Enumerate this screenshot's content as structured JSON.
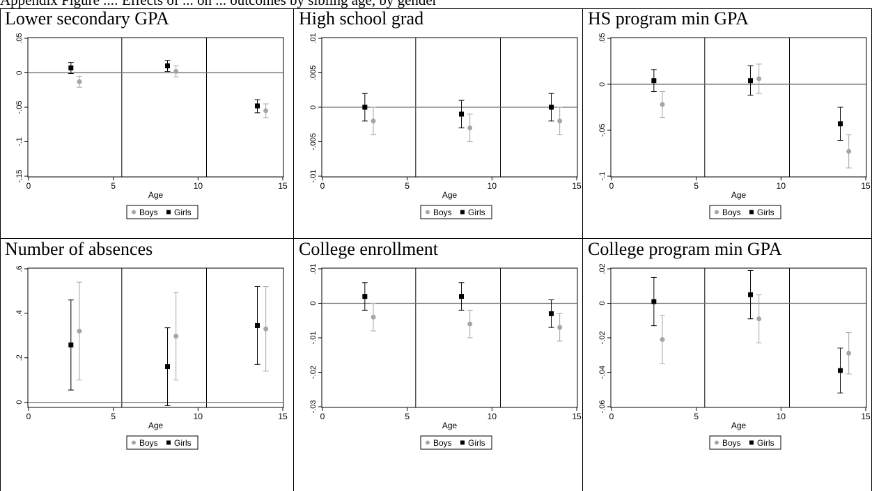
{
  "caption": "Appendix Figure ...: Effects of ... on ... outcomes by sibling age, by gender",
  "xlabel": "Age",
  "legend": {
    "boys": "Boys",
    "girls": "Girls"
  },
  "colors": {
    "boys": "#a6a6a6",
    "girls": "#000000",
    "axis": "#000000",
    "refline": "#6e6e6e"
  },
  "panels": [
    {
      "title": "Lower secondary GPA",
      "chart_data": {
        "type": "scatter",
        "title": "Lower secondary GPA",
        "xlabel": "Age",
        "ylabel": "",
        "xlim": [
          0,
          15
        ],
        "ylim": [
          -0.15,
          0.05
        ],
        "xticks": [
          0,
          5,
          10,
          15
        ],
        "yticks": [
          0.05,
          0,
          -0.05,
          -0.1,
          -0.15
        ],
        "ytick_labels": [
          ".05",
          "0",
          "-.05",
          "-.1",
          "-.15"
        ],
        "vlines": [
          5.5,
          10.5
        ],
        "hline": 0,
        "series": [
          {
            "name": "Girls",
            "x": [
              2.5,
              8.2,
              13.5
            ],
            "y": [
              0.007,
              0.01,
              -0.048
            ],
            "ci_low": [
              -0.001,
              0.002,
              -0.058
            ],
            "ci_high": [
              0.015,
              0.018,
              -0.039
            ]
          },
          {
            "name": "Boys",
            "x": [
              3.0,
              8.7,
              14.0
            ],
            "y": [
              -0.013,
              0.002,
              -0.055
            ],
            "ci_low": [
              -0.021,
              -0.006,
              -0.065
            ],
            "ci_high": [
              -0.005,
              0.01,
              -0.045
            ]
          }
        ]
      }
    },
    {
      "title": "High school grad",
      "chart_data": {
        "type": "scatter",
        "title": "High school grad",
        "xlabel": "Age",
        "ylabel": "",
        "xlim": [
          0,
          15
        ],
        "ylim": [
          -0.01,
          0.01
        ],
        "xticks": [
          0,
          5,
          10,
          15
        ],
        "yticks": [
          0.01,
          0.005,
          0,
          -0.005,
          -0.01
        ],
        "ytick_labels": [
          ".01",
          ".005",
          "0",
          "-.005",
          "-.01"
        ],
        "vlines": [
          5.5,
          10.5
        ],
        "hline": 0,
        "series": [
          {
            "name": "Girls",
            "x": [
              2.5,
              8.2,
              13.5
            ],
            "y": [
              0.0,
              -0.001,
              0.0
            ],
            "ci_low": [
              -0.002,
              -0.003,
              -0.002
            ],
            "ci_high": [
              0.002,
              0.001,
              0.002
            ]
          },
          {
            "name": "Boys",
            "x": [
              3.0,
              8.7,
              14.0
            ],
            "y": [
              -0.002,
              -0.003,
              -0.002
            ],
            "ci_low": [
              -0.004,
              -0.005,
              -0.004
            ],
            "ci_high": [
              0.0,
              -0.001,
              0.0
            ]
          }
        ]
      }
    },
    {
      "title": "HS program min GPA",
      "chart_data": {
        "type": "scatter",
        "title": "HS program min GPA",
        "xlabel": "Age",
        "ylabel": "",
        "xlim": [
          0,
          15
        ],
        "ylim": [
          -0.1,
          0.05
        ],
        "xticks": [
          0,
          5,
          10,
          15
        ],
        "yticks": [
          0.05,
          0,
          -0.05,
          -0.1
        ],
        "ytick_labels": [
          ".05",
          "0",
          "-.05",
          "-.1"
        ],
        "vlines": [
          5.5,
          10.5
        ],
        "hline": 0,
        "series": [
          {
            "name": "Girls",
            "x": [
              2.5,
              8.2,
              13.5
            ],
            "y": [
              0.004,
              0.004,
              -0.043
            ],
            "ci_low": [
              -0.008,
              -0.012,
              -0.061
            ],
            "ci_high": [
              0.016,
              0.02,
              -0.025
            ]
          },
          {
            "name": "Boys",
            "x": [
              3.0,
              8.7,
              14.0
            ],
            "y": [
              -0.022,
              0.006,
              -0.073
            ],
            "ci_low": [
              -0.036,
              -0.01,
              -0.091
            ],
            "ci_high": [
              -0.008,
              0.022,
              -0.055
            ]
          }
        ]
      }
    },
    {
      "title": "Number of absences",
      "chart_data": {
        "type": "scatter",
        "title": "Number of absences",
        "xlabel": "Age",
        "ylabel": "",
        "xlim": [
          0,
          15
        ],
        "ylim": [
          -0.02,
          0.6
        ],
        "xticks": [
          0,
          5,
          10,
          15
        ],
        "yticks": [
          0.6,
          0.4,
          0.2,
          0
        ],
        "ytick_labels": [
          ".6",
          ".4",
          ".2",
          "0"
        ],
        "vlines": [
          5.5,
          10.5
        ],
        "hline": 0,
        "series": [
          {
            "name": "Girls",
            "x": [
              2.5,
              8.2,
              13.5
            ],
            "y": [
              0.258,
              0.16,
              0.345
            ],
            "ci_low": [
              0.055,
              -0.015,
              0.17
            ],
            "ci_high": [
              0.46,
              0.335,
              0.52
            ]
          },
          {
            "name": "Boys",
            "x": [
              3.0,
              8.7,
              14.0
            ],
            "y": [
              0.32,
              0.297,
              0.33
            ],
            "ci_low": [
              0.1,
              0.1,
              0.14
            ],
            "ci_high": [
              0.54,
              0.495,
              0.52
            ]
          }
        ]
      }
    },
    {
      "title": "College enrollment",
      "chart_data": {
        "type": "scatter",
        "title": "College enrollment",
        "xlabel": "Age",
        "ylabel": "",
        "xlim": [
          0,
          15
        ],
        "ylim": [
          -0.03,
          0.01
        ],
        "xticks": [
          0,
          5,
          10,
          15
        ],
        "yticks": [
          0.01,
          0,
          -0.01,
          -0.02,
          -0.03
        ],
        "ytick_labels": [
          ".01",
          "0",
          "-.01",
          "-.02",
          "-.03"
        ],
        "vlines": [
          5.5,
          10.5
        ],
        "hline": 0,
        "series": [
          {
            "name": "Girls",
            "x": [
              2.5,
              8.2,
              13.5
            ],
            "y": [
              0.002,
              0.002,
              -0.003
            ],
            "ci_low": [
              -0.002,
              -0.002,
              -0.007
            ],
            "ci_high": [
              0.006,
              0.006,
              0.001
            ]
          },
          {
            "name": "Boys",
            "x": [
              3.0,
              8.7,
              14.0
            ],
            "y": [
              -0.004,
              -0.006,
              -0.007
            ],
            "ci_low": [
              -0.008,
              -0.01,
              -0.011
            ],
            "ci_high": [
              0.0,
              -0.002,
              -0.003
            ]
          }
        ]
      }
    },
    {
      "title": "College program min GPA",
      "chart_data": {
        "type": "scatter",
        "title": "College program min GPA",
        "xlabel": "Age",
        "ylabel": "",
        "xlim": [
          0,
          15
        ],
        "ylim": [
          -0.06,
          0.02
        ],
        "xticks": [
          0,
          5,
          10,
          15
        ],
        "yticks": [
          0.02,
          0,
          -0.02,
          -0.04,
          -0.06
        ],
        "ytick_labels": [
          ".02",
          "0",
          "-.02",
          "-.04",
          "-.06"
        ],
        "vlines": [
          5.5,
          10.5
        ],
        "hline": 0,
        "series": [
          {
            "name": "Girls",
            "x": [
              2.5,
              8.2,
              13.5
            ],
            "y": [
              0.001,
              0.005,
              -0.039
            ],
            "ci_low": [
              -0.013,
              -0.009,
              -0.052
            ],
            "ci_high": [
              0.015,
              0.019,
              -0.026
            ]
          },
          {
            "name": "Boys",
            "x": [
              3.0,
              8.7,
              14.0
            ],
            "y": [
              -0.021,
              -0.009,
              -0.029
            ],
            "ci_low": [
              -0.035,
              -0.023,
              -0.041
            ],
            "ci_high": [
              -0.007,
              0.005,
              -0.017
            ]
          }
        ]
      }
    }
  ]
}
